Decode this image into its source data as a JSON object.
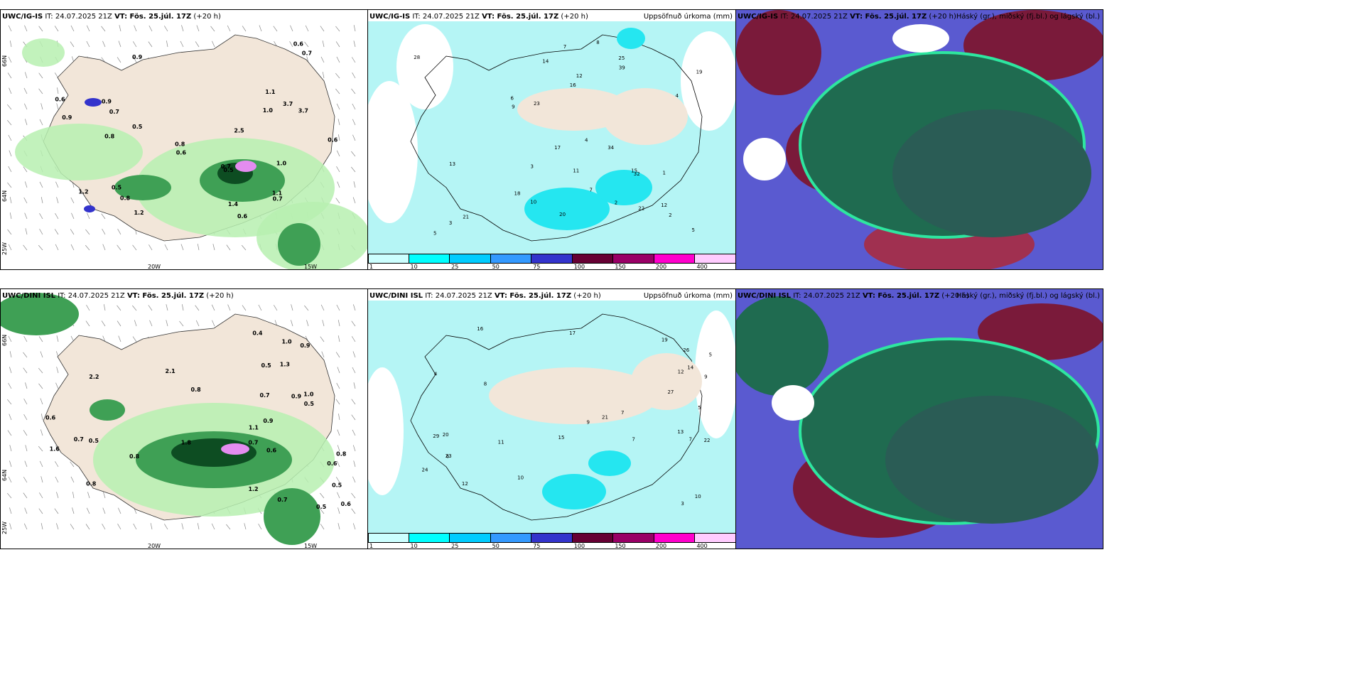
{
  "rows": [
    {
      "model": "UWC/IG-IS",
      "run_label": "IT: 24.07.2025 21Z",
      "valid_label": "VT: Fös. 25.júl. 17Z",
      "lead_label": "(+20 h)"
    },
    {
      "model": "UWC/DINI ISL",
      "run_label": "IT: 24.07.2025 21Z",
      "valid_label": "VT: Fös. 25.júl. 17Z",
      "lead_label": "(+20 h)"
    }
  ],
  "precip_title": "Uppsöfnuð úrkoma (mm)",
  "cloud_title": "Háský (gr.), miðský (fj.bl.) og lágský (bl.)",
  "lat_labels": [
    "66N",
    "64N",
    "25W"
  ],
  "lon_labels": [
    "20W",
    "15W"
  ],
  "colorbar": {
    "ticks": [
      "1",
      "10",
      "25",
      "50",
      "75",
      "100",
      "150",
      "200",
      "400"
    ],
    "colors": [
      "#ccffff",
      "#00ffff",
      "#00ccff",
      "#3399ff",
      "#3333cc",
      "#660033",
      "#990066",
      "#ff00cc",
      "#ffccff"
    ]
  },
  "colors": {
    "land": "#f2e6d9",
    "sea": "#ffffff",
    "rain_light": "#b7f0b0",
    "rain_mid": "#3fa055",
    "rain_heavy": "#0d4d22",
    "precip_light": "#b5f5f5",
    "precip_mid": "#25e6f0",
    "cloud_high": "#7a1a3a",
    "cloud_mid": "#5a5ad0",
    "cloud_low": "#1f6b50"
  },
  "panel1_values": [
    "0.6",
    "0.9",
    "0.5",
    "0.9",
    "3.7",
    "1.4",
    "0.6",
    "0.5",
    "0.6",
    "0.8",
    "1.2",
    "0.6",
    "0.8",
    "0.7",
    "1.0",
    "0.6",
    "0.9",
    "0.7",
    "1.0",
    "3.7",
    "1.1",
    "0.5",
    "1.2",
    "0.7",
    "2.5",
    "1.1",
    "0.8",
    "0.7"
  ],
  "panel2_values": [
    "3",
    "1",
    "4",
    "11",
    "14",
    "8",
    "12",
    "25",
    "22",
    "18",
    "5",
    "9",
    "10",
    "7",
    "2",
    "6",
    "15",
    "13",
    "17",
    "19",
    "28",
    "21",
    "20",
    "34",
    "32",
    "39",
    "23",
    "16",
    "4",
    "7",
    "2",
    "3",
    "12",
    "5"
  ],
  "panel4_values": [
    "0.7",
    "0.8",
    "0.9",
    "0.6",
    "1.2",
    "1.3",
    "1.0",
    "0.8",
    "0.5",
    "0.7",
    "0.9",
    "1.1",
    "1.6",
    "0.6",
    "0.8",
    "0.5",
    "0.9",
    "0.7",
    "1.0",
    "2.1",
    "1.8",
    "0.6",
    "0.7",
    "0.4",
    "0.5",
    "0.8",
    "2.2",
    "0.5",
    "0.6",
    "0.5"
  ],
  "panel5_values": [
    "8",
    "6",
    "4",
    "10",
    "7",
    "5",
    "3",
    "11",
    "12",
    "16",
    "17",
    "24",
    "21",
    "9",
    "13",
    "15",
    "22",
    "29",
    "23",
    "27",
    "26",
    "19",
    "10",
    "7",
    "5",
    "9",
    "12",
    "14",
    "20",
    "7"
  ]
}
